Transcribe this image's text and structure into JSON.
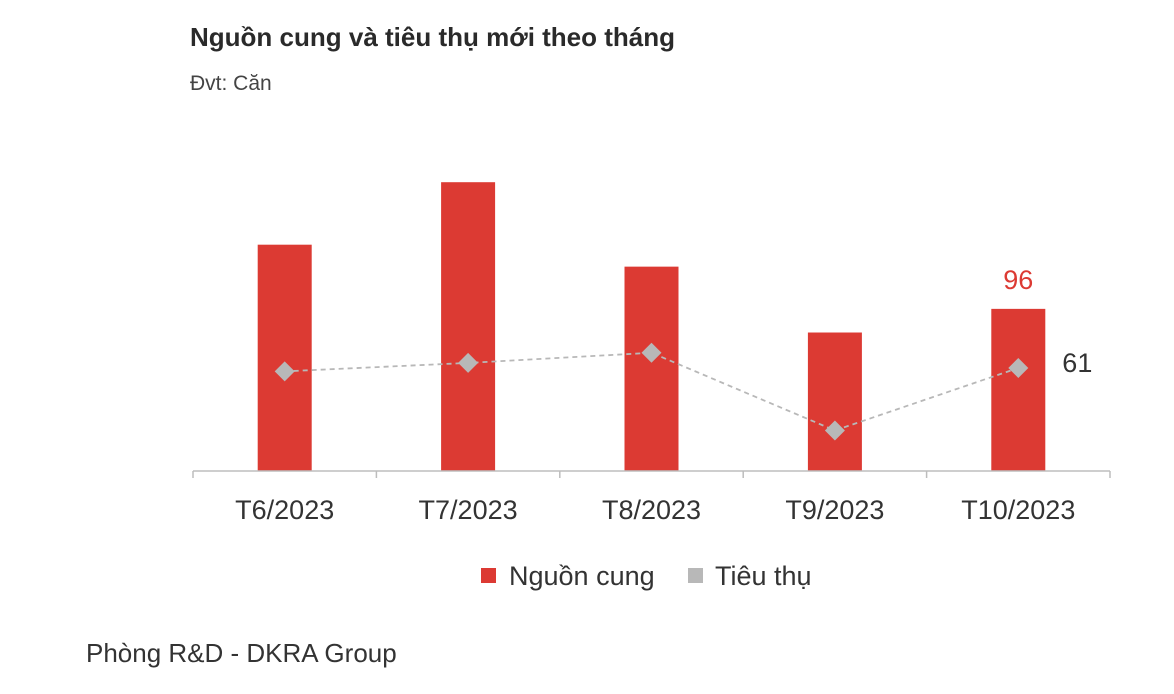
{
  "chart_data": {
    "type": "bar",
    "title": "Nguồn cung và tiêu thụ mới theo tháng",
    "subtitle": "Đvt: Căn",
    "categories": [
      "T6/2023",
      "T7/2023",
      "T8/2023",
      "T9/2023",
      "T10/2023"
    ],
    "series": [
      {
        "name": "Nguồn cung",
        "kind": "bar",
        "color": "#dc3a33",
        "values": [
          134,
          171,
          121,
          82,
          96
        ]
      },
      {
        "name": "Tiêu thụ",
        "kind": "line",
        "color": "#b8b8b8",
        "values": [
          59,
          64,
          70,
          24,
          61
        ]
      }
    ],
    "data_labels": [
      {
        "series": "Nguồn cung",
        "category": "T10/2023",
        "text": "96",
        "color": "#dc3a33"
      },
      {
        "series": "Tiêu thụ",
        "category": "T10/2023",
        "text": "61",
        "color": "#333333"
      }
    ],
    "ylim": [
      0,
      180
    ],
    "grid": false,
    "legend_position": "bottom"
  },
  "footer": {
    "source": "Phòng R&D - DKRA Group"
  }
}
